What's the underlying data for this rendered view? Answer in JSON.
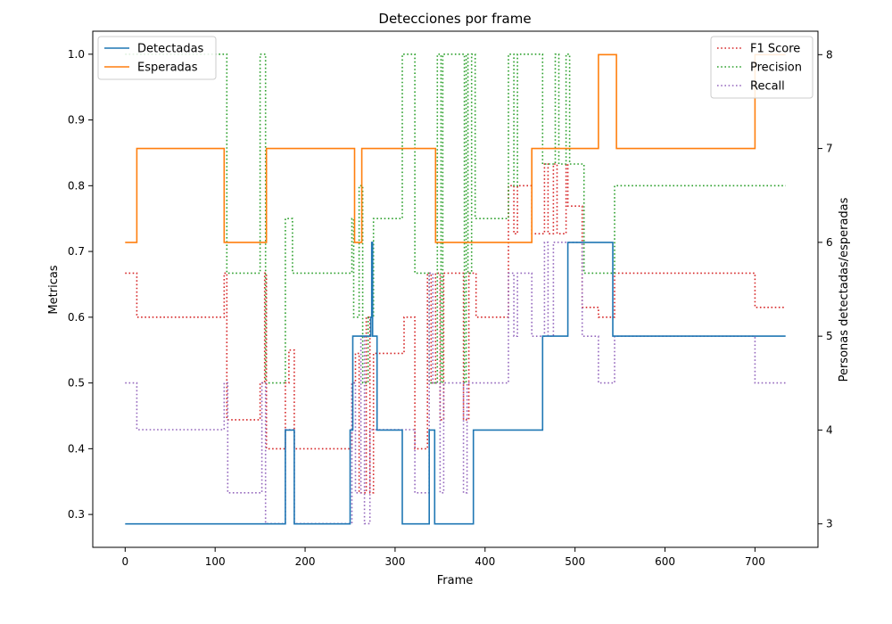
{
  "chart_data": {
    "type": "line",
    "title": "Detecciones por frame",
    "xlabel": "Frame",
    "ylabel_left": "Metricas",
    "ylabel_right": "Personas detectadas/esperadas",
    "xlim": [
      -36,
      770
    ],
    "ylim_left": [
      0.25,
      1.035
    ],
    "ylim_right": [
      2.75,
      8.25
    ],
    "x_ticks": [
      0,
      100,
      200,
      300,
      400,
      500,
      600,
      700
    ],
    "y_ticks_left": [
      0.3,
      0.4,
      0.5,
      0.6,
      0.7,
      0.8,
      0.9,
      1.0
    ],
    "y_ticks_right": [
      3,
      4,
      5,
      6,
      7,
      8
    ],
    "grid": false,
    "legend_left": {
      "placement": "top-left",
      "entries": [
        "Detectadas",
        "Esperadas"
      ]
    },
    "legend_right": {
      "placement": "top-right",
      "entries": [
        "F1 Score",
        "Precision",
        "Recall"
      ]
    },
    "series": [
      {
        "name": "Detectadas",
        "axis": "right",
        "style": "solid",
        "color": "#1f77b4",
        "points": [
          [
            0,
            3
          ],
          [
            178,
            3
          ],
          [
            178,
            4
          ],
          [
            188,
            4
          ],
          [
            188,
            3
          ],
          [
            250,
            3
          ],
          [
            250,
            4
          ],
          [
            253,
            4
          ],
          [
            253,
            5
          ],
          [
            273,
            5
          ],
          [
            273,
            5.2
          ],
          [
            274,
            5.2
          ],
          [
            274,
            6
          ],
          [
            275,
            6
          ],
          [
            275,
            5
          ],
          [
            280,
            5
          ],
          [
            280,
            4
          ],
          [
            308,
            4
          ],
          [
            308,
            3
          ],
          [
            338,
            3
          ],
          [
            338,
            4
          ],
          [
            344,
            4
          ],
          [
            344,
            3
          ],
          [
            387,
            3
          ],
          [
            387,
            4
          ],
          [
            464,
            4
          ],
          [
            464,
            5
          ],
          [
            492,
            5
          ],
          [
            492,
            6
          ],
          [
            542,
            6
          ],
          [
            542,
            5
          ],
          [
            734,
            5
          ]
        ]
      },
      {
        "name": "Esperadas",
        "axis": "right",
        "style": "solid",
        "color": "#ff7f0e",
        "points": [
          [
            0,
            6
          ],
          [
            13,
            6
          ],
          [
            13,
            7
          ],
          [
            110,
            7
          ],
          [
            110,
            6
          ],
          [
            157,
            6
          ],
          [
            157,
            7
          ],
          [
            255,
            7
          ],
          [
            255,
            6
          ],
          [
            263,
            6
          ],
          [
            263,
            7
          ],
          [
            345,
            7
          ],
          [
            345,
            6
          ],
          [
            452,
            6
          ],
          [
            452,
            7
          ],
          [
            526,
            7
          ],
          [
            526,
            8
          ],
          [
            546,
            8
          ],
          [
            546,
            7
          ],
          [
            700,
            7
          ],
          [
            700,
            8
          ],
          [
            734,
            8
          ]
        ]
      },
      {
        "name": "F1 Score",
        "axis": "left",
        "style": "dotted",
        "color": "#d62728",
        "points": [
          [
            0,
            0.667
          ],
          [
            13,
            0.667
          ],
          [
            13,
            0.6
          ],
          [
            110,
            0.6
          ],
          [
            110,
            0.667
          ],
          [
            113,
            0.667
          ],
          [
            113,
            0.444
          ],
          [
            150,
            0.444
          ],
          [
            150,
            0.5
          ],
          [
            155,
            0.5
          ],
          [
            155,
            0.667
          ],
          [
            157,
            0.667
          ],
          [
            157,
            0.4
          ],
          [
            178,
            0.4
          ],
          [
            178,
            0.5
          ],
          [
            182,
            0.5
          ],
          [
            182,
            0.55
          ],
          [
            188,
            0.55
          ],
          [
            188,
            0.4
          ],
          [
            252,
            0.4
          ],
          [
            252,
            0.5
          ],
          [
            256,
            0.5
          ],
          [
            256,
            0.545
          ],
          [
            260,
            0.545
          ],
          [
            260,
            0.333
          ],
          [
            268,
            0.333
          ],
          [
            268,
            0.6
          ],
          [
            272,
            0.6
          ],
          [
            272,
            0.333
          ],
          [
            276,
            0.333
          ],
          [
            276,
            0.545
          ],
          [
            280,
            0.545
          ],
          [
            280,
            0.545
          ],
          [
            310,
            0.545
          ],
          [
            310,
            0.6
          ],
          [
            322,
            0.6
          ],
          [
            322,
            0.4
          ],
          [
            336,
            0.4
          ],
          [
            336,
            0.667
          ],
          [
            340,
            0.667
          ],
          [
            340,
            0.5
          ],
          [
            345,
            0.5
          ],
          [
            345,
            0.667
          ],
          [
            350,
            0.667
          ],
          [
            350,
            0.444
          ],
          [
            354,
            0.444
          ],
          [
            354,
            0.667
          ],
          [
            376,
            0.667
          ],
          [
            376,
            0.444
          ],
          [
            382,
            0.444
          ],
          [
            382,
            0.667
          ],
          [
            390,
            0.667
          ],
          [
            390,
            0.6
          ],
          [
            426,
            0.6
          ],
          [
            426,
            0.8
          ],
          [
            432,
            0.8
          ],
          [
            432,
            0.727
          ],
          [
            436,
            0.727
          ],
          [
            436,
            0.8
          ],
          [
            452,
            0.8
          ],
          [
            452,
            0.727
          ],
          [
            466,
            0.727
          ],
          [
            466,
            0.833
          ],
          [
            470,
            0.833
          ],
          [
            470,
            0.727
          ],
          [
            476,
            0.727
          ],
          [
            476,
            0.833
          ],
          [
            480,
            0.833
          ],
          [
            480,
            0.727
          ],
          [
            490,
            0.727
          ],
          [
            490,
            0.833
          ],
          [
            492,
            0.833
          ],
          [
            492,
            0.769
          ],
          [
            508,
            0.769
          ],
          [
            508,
            0.615
          ],
          [
            526,
            0.615
          ],
          [
            526,
            0.6
          ],
          [
            544,
            0.6
          ],
          [
            544,
            0.667
          ],
          [
            700,
            0.667
          ],
          [
            700,
            0.615
          ],
          [
            734,
            0.615
          ]
        ]
      },
      {
        "name": "Precision",
        "axis": "left",
        "style": "dotted",
        "color": "#2ca02c",
        "points": [
          [
            0,
            1.0
          ],
          [
            113,
            1.0
          ],
          [
            113,
            0.667
          ],
          [
            150,
            0.667
          ],
          [
            150,
            1.0
          ],
          [
            156,
            1.0
          ],
          [
            156,
            0.5
          ],
          [
            178,
            0.5
          ],
          [
            178,
            0.75
          ],
          [
            186,
            0.75
          ],
          [
            186,
            0.667
          ],
          [
            252,
            0.667
          ],
          [
            252,
            0.75
          ],
          [
            254,
            0.75
          ],
          [
            254,
            0.6
          ],
          [
            260,
            0.6
          ],
          [
            260,
            0.8
          ],
          [
            264,
            0.8
          ],
          [
            264,
            0.5
          ],
          [
            270,
            0.5
          ],
          [
            270,
            0.6
          ],
          [
            276,
            0.6
          ],
          [
            276,
            0.75
          ],
          [
            308,
            0.75
          ],
          [
            308,
            1.0
          ],
          [
            322,
            1.0
          ],
          [
            322,
            0.667
          ],
          [
            338,
            0.667
          ],
          [
            338,
            0.5
          ],
          [
            347,
            0.5
          ],
          [
            347,
            1.0
          ],
          [
            351,
            1.0
          ],
          [
            351,
            0.5
          ],
          [
            353,
            0.5
          ],
          [
            353,
            1.0
          ],
          [
            377,
            1.0
          ],
          [
            377,
            0.5
          ],
          [
            379,
            0.5
          ],
          [
            379,
            1.0
          ],
          [
            381,
            1.0
          ],
          [
            381,
            0.667
          ],
          [
            385,
            0.667
          ],
          [
            385,
            1.0
          ],
          [
            389,
            1.0
          ],
          [
            389,
            0.75
          ],
          [
            426,
            0.75
          ],
          [
            426,
            1.0
          ],
          [
            432,
            1.0
          ],
          [
            432,
            0.8
          ],
          [
            436,
            0.8
          ],
          [
            436,
            1.0
          ],
          [
            464,
            1.0
          ],
          [
            464,
            0.833
          ],
          [
            478,
            0.833
          ],
          [
            478,
            1.0
          ],
          [
            482,
            1.0
          ],
          [
            482,
            0.833
          ],
          [
            490,
            0.833
          ],
          [
            490,
            1.0
          ],
          [
            494,
            1.0
          ],
          [
            494,
            0.833
          ],
          [
            510,
            0.833
          ],
          [
            510,
            0.667
          ],
          [
            544,
            0.667
          ],
          [
            544,
            0.8
          ],
          [
            734,
            0.8
          ]
        ]
      },
      {
        "name": "Recall",
        "axis": "left",
        "style": "dotted",
        "color": "#9467bd",
        "points": [
          [
            0,
            0.5
          ],
          [
            13,
            0.5
          ],
          [
            13,
            0.429
          ],
          [
            110,
            0.429
          ],
          [
            110,
            0.5
          ],
          [
            114,
            0.5
          ],
          [
            114,
            0.333
          ],
          [
            152,
            0.333
          ],
          [
            152,
            0.5
          ],
          [
            156,
            0.5
          ],
          [
            156,
            0.286
          ],
          [
            178,
            0.286
          ],
          [
            178,
            0.429
          ],
          [
            188,
            0.429
          ],
          [
            188,
            0.286
          ],
          [
            252,
            0.286
          ],
          [
            252,
            0.5
          ],
          [
            256,
            0.5
          ],
          [
            256,
            0.333
          ],
          [
            262,
            0.333
          ],
          [
            262,
            0.571
          ],
          [
            266,
            0.571
          ],
          [
            266,
            0.286
          ],
          [
            272,
            0.286
          ],
          [
            272,
            0.429
          ],
          [
            276,
            0.429
          ],
          [
            276,
            0.429
          ],
          [
            322,
            0.429
          ],
          [
            322,
            0.333
          ],
          [
            338,
            0.333
          ],
          [
            338,
            0.667
          ],
          [
            342,
            0.667
          ],
          [
            342,
            0.5
          ],
          [
            350,
            0.5
          ],
          [
            350,
            0.333
          ],
          [
            354,
            0.333
          ],
          [
            354,
            0.5
          ],
          [
            376,
            0.5
          ],
          [
            376,
            0.333
          ],
          [
            380,
            0.333
          ],
          [
            380,
            0.5
          ],
          [
            426,
            0.5
          ],
          [
            426,
            0.667
          ],
          [
            432,
            0.667
          ],
          [
            432,
            0.571
          ],
          [
            436,
            0.571
          ],
          [
            436,
            0.667
          ],
          [
            452,
            0.667
          ],
          [
            452,
            0.571
          ],
          [
            466,
            0.571
          ],
          [
            466,
            0.714
          ],
          [
            470,
            0.714
          ],
          [
            470,
            0.571
          ],
          [
            476,
            0.571
          ],
          [
            476,
            0.714
          ],
          [
            508,
            0.714
          ],
          [
            508,
            0.571
          ],
          [
            526,
            0.571
          ],
          [
            526,
            0.5
          ],
          [
            544,
            0.5
          ],
          [
            544,
            0.571
          ],
          [
            700,
            0.571
          ],
          [
            700,
            0.5
          ],
          [
            734,
            0.5
          ]
        ]
      }
    ]
  }
}
